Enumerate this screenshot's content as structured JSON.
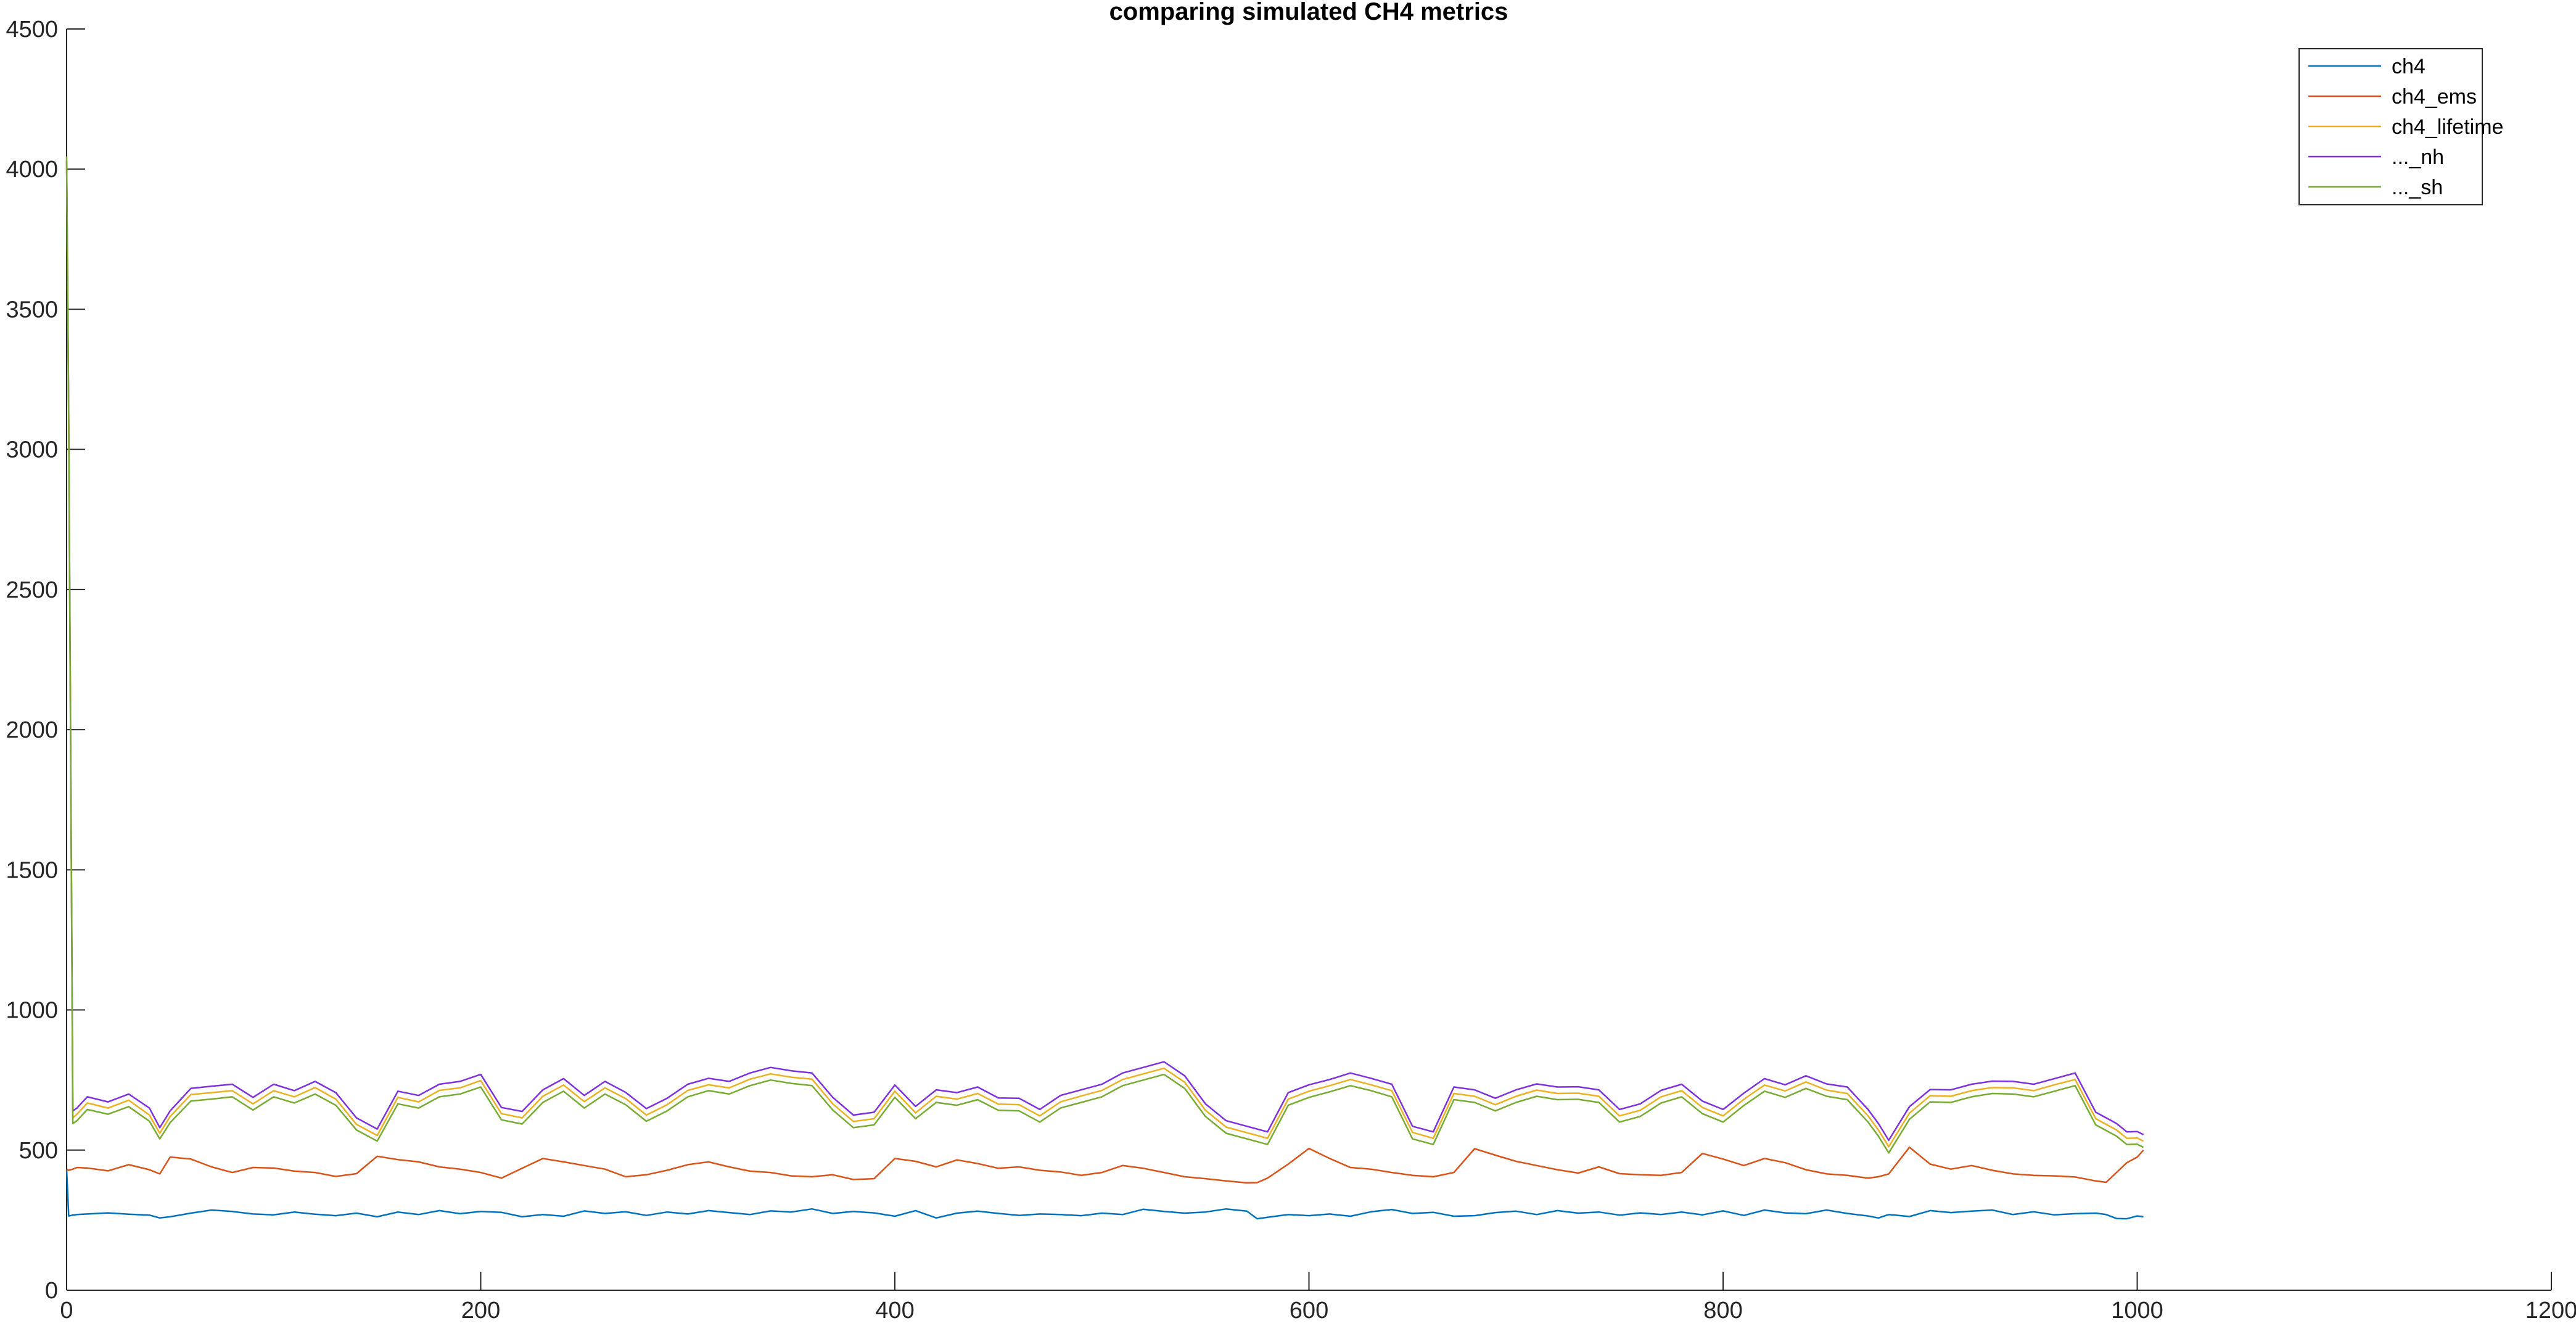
{
  "chart_data": {
    "type": "line",
    "title": "comparing simulated CH4 metrics",
    "xlabel": "",
    "ylabel": "",
    "xlim": [
      0,
      1200
    ],
    "ylim": [
      0,
      4500
    ],
    "xticks": [
      0,
      200,
      400,
      600,
      800,
      1000,
      1200
    ],
    "yticks": [
      0,
      500,
      1000,
      1500,
      2000,
      2500,
      3000,
      3500,
      4000,
      4500
    ],
    "grid": false,
    "legend_position": "top-right",
    "series": [
      {
        "name": "ch4",
        "color": "#0072BD",
        "x": [
          0,
          1,
          3,
          5,
          10,
          20,
          30,
          40,
          45,
          50,
          60,
          70,
          80,
          90,
          100,
          110,
          120,
          130,
          140,
          150,
          160,
          170,
          180,
          190,
          200,
          210,
          220,
          230,
          240,
          250,
          260,
          270,
          280,
          290,
          300,
          310,
          320,
          330,
          340,
          350,
          360,
          370,
          380,
          390,
          400,
          410,
          420,
          430,
          440,
          450,
          460,
          470,
          480,
          490,
          500,
          510,
          520,
          530,
          540,
          550,
          560,
          570,
          575,
          580,
          590,
          600,
          610,
          620,
          630,
          640,
          650,
          660,
          670,
          680,
          690,
          700,
          710,
          720,
          730,
          740,
          750,
          760,
          770,
          780,
          790,
          800,
          810,
          820,
          830,
          840,
          850,
          860,
          870,
          875,
          880,
          890,
          900,
          910,
          920,
          930,
          940,
          950,
          960,
          970,
          980,
          985,
          990,
          995,
          1000,
          1003
        ],
        "y": [
          430,
          265,
          268,
          270,
          272,
          276,
          271,
          268,
          258,
          262,
          275,
          286,
          281,
          272,
          269,
          279,
          271,
          266,
          275,
          262,
          279,
          270,
          284,
          273,
          281,
          278,
          262,
          270,
          264,
          283,
          274,
          280,
          267,
          279,
          272,
          284,
          277,
          270,
          283,
          279,
          290,
          274,
          281,
          276,
          264,
          284,
          258,
          275,
          282,
          274,
          267,
          272,
          270,
          266,
          275,
          270,
          289,
          281,
          275,
          279,
          290,
          282,
          255,
          260,
          270,
          266,
          272,
          264,
          280,
          288,
          274,
          278,
          264,
          266,
          277,
          282,
          270,
          284,
          275,
          279,
          268,
          276,
          270,
          279,
          269,
          283,
          267,
          286,
          276,
          273,
          286,
          274,
          265,
          258,
          270,
          263,
          284,
          277,
          282,
          286,
          270,
          280,
          269,
          273,
          275,
          270,
          256,
          255,
          265,
          262
        ]
      },
      {
        "name": "ch4_ems",
        "color": "#D95319",
        "x": [
          0,
          1,
          3,
          5,
          10,
          20,
          30,
          40,
          45,
          50,
          60,
          70,
          80,
          90,
          100,
          110,
          120,
          130,
          140,
          150,
          160,
          170,
          180,
          190,
          200,
          210,
          220,
          230,
          240,
          250,
          260,
          270,
          280,
          290,
          300,
          310,
          320,
          330,
          340,
          350,
          360,
          370,
          380,
          390,
          400,
          410,
          420,
          430,
          440,
          450,
          460,
          470,
          480,
          490,
          500,
          510,
          520,
          530,
          540,
          550,
          560,
          570,
          575,
          580,
          590,
          600,
          610,
          620,
          630,
          640,
          650,
          660,
          670,
          680,
          690,
          700,
          710,
          720,
          730,
          740,
          750,
          760,
          770,
          780,
          790,
          800,
          810,
          820,
          830,
          840,
          850,
          860,
          870,
          875,
          880,
          890,
          900,
          910,
          920,
          930,
          940,
          950,
          960,
          970,
          980,
          985,
          990,
          995,
          1000,
          1003
        ],
        "y": [
          430,
          428,
          432,
          438,
          436,
          426,
          448,
          430,
          415,
          475,
          468,
          440,
          420,
          438,
          436,
          425,
          420,
          406,
          416,
          478,
          466,
          458,
          440,
          432,
          420,
          400,
          435,
          470,
          458,
          445,
          432,
          405,
          412,
          428,
          448,
          458,
          440,
          425,
          420,
          408,
          405,
          412,
          395,
          398,
          470,
          460,
          440,
          465,
          452,
          435,
          440,
          428,
          422,
          410,
          420,
          445,
          435,
          420,
          405,
          398,
          390,
          383,
          384,
          400,
          450,
          506,
          470,
          438,
          432,
          420,
          410,
          405,
          420,
          505,
          482,
          460,
          445,
          430,
          418,
          440,
          416,
          412,
          410,
          420,
          488,
          468,
          445,
          470,
          455,
          430,
          415,
          410,
          400,
          405,
          415,
          510,
          450,
          432,
          445,
          428,
          415,
          410,
          408,
          404,
          390,
          385,
          420,
          455,
          475,
          500
        ]
      },
      {
        "name": "ch4_lifetime",
        "color": "#EDB120",
        "x": [
          0,
          1,
          3,
          5,
          10,
          20,
          30,
          40,
          45,
          50,
          60,
          70,
          80,
          90,
          100,
          110,
          120,
          130,
          140,
          150,
          160,
          170,
          180,
          190,
          200,
          210,
          220,
          230,
          240,
          250,
          260,
          270,
          280,
          290,
          300,
          310,
          320,
          330,
          340,
          350,
          360,
          370,
          380,
          390,
          400,
          410,
          420,
          430,
          440,
          450,
          460,
          470,
          480,
          490,
          500,
          510,
          520,
          530,
          540,
          550,
          560,
          570,
          575,
          580,
          590,
          600,
          610,
          620,
          630,
          640,
          650,
          660,
          670,
          680,
          690,
          700,
          710,
          720,
          730,
          740,
          750,
          760,
          770,
          780,
          790,
          800,
          810,
          820,
          830,
          840,
          850,
          860,
          870,
          875,
          880,
          890,
          900,
          910,
          920,
          930,
          940,
          950,
          960,
          970,
          980,
          985,
          990,
          995,
          1000,
          1003
        ],
        "y": [
          4025,
          3100,
          615,
          628,
          668,
          650,
          678,
          625,
          560,
          620,
          698,
          705,
          712,
          665,
          712,
          690,
          723,
          682,
          592,
          552,
          688,
          672,
          713,
          722,
          748,
          630,
          615,
          692,
          732,
          673,
          722,
          684,
          625,
          662,
          713,
          733,
          722,
          753,
          772,
          760,
          753,
          665,
          602,
          612,
          710,
          633,
          692,
          682,
          702,
          664,
          662,
          622,
          672,
          693,
          713,
          752,
          772,
          792,
          742,
          642,
          582,
          562,
          552,
          542,
          682,
          710,
          730,
          752,
          733,
          712,
          563,
          542,
          702,
          692,
          662,
          692,
          714,
          702,
          703,
          692,
          622,
          642,
          690,
          712,
          652,
          622,
          681,
          732,
          711,
          743,
          714,
          702,
          622,
          572,
          512,
          632,
          694,
          692,
          712,
          723,
          722,
          712,
          733,
          752,
          612,
          592,
          572,
          542,
          543,
          532
        ]
      },
      {
        "name": "..._nh",
        "color": "#7E2FDE",
        "x": [
          0,
          1,
          3,
          5,
          10,
          20,
          30,
          40,
          45,
          50,
          60,
          70,
          80,
          90,
          100,
          110,
          120,
          130,
          140,
          150,
          160,
          170,
          180,
          190,
          200,
          210,
          220,
          230,
          240,
          250,
          260,
          270,
          280,
          290,
          300,
          310,
          320,
          330,
          340,
          350,
          360,
          370,
          380,
          390,
          400,
          410,
          420,
          430,
          440,
          450,
          460,
          470,
          480,
          490,
          500,
          510,
          520,
          530,
          540,
          550,
          560,
          570,
          575,
          580,
          590,
          600,
          610,
          620,
          630,
          640,
          650,
          660,
          670,
          680,
          690,
          700,
          710,
          720,
          730,
          740,
          750,
          760,
          770,
          780,
          790,
          800,
          810,
          820,
          830,
          840,
          850,
          860,
          870,
          875,
          880,
          890,
          900,
          910,
          920,
          930,
          940,
          950,
          960,
          970,
          980,
          985,
          990,
          995,
          1000,
          1003
        ],
        "y": [
          4030,
          3120,
          640,
          650,
          690,
          672,
          700,
          650,
          580,
          640,
          720,
          728,
          735,
          688,
          735,
          712,
          745,
          705,
          615,
          575,
          710,
          695,
          735,
          745,
          770,
          652,
          638,
          715,
          755,
          695,
          745,
          706,
          648,
          685,
          735,
          756,
          745,
          775,
          795,
          783,
          775,
          688,
          625,
          635,
          732,
          656,
          715,
          705,
          725,
          686,
          685,
          645,
          695,
          715,
          735,
          775,
          795,
          815,
          765,
          665,
          605,
          585,
          575,
          565,
          705,
          733,
          752,
          775,
          756,
          735,
          585,
          565,
          725,
          715,
          685,
          715,
          736,
          725,
          726,
          715,
          645,
          665,
          713,
          735,
          675,
          645,
          703,
          755,
          733,
          765,
          736,
          725,
          645,
          595,
          535,
          655,
          716,
          715,
          735,
          746,
          745,
          735,
          755,
          775,
          635,
          615,
          595,
          565,
          566,
          555
        ]
      },
      {
        "name": "..._sh",
        "color": "#77AC30",
        "x": [
          0,
          1,
          3,
          5,
          10,
          20,
          30,
          40,
          45,
          50,
          60,
          70,
          80,
          90,
          100,
          110,
          120,
          130,
          140,
          150,
          160,
          170,
          180,
          190,
          200,
          210,
          220,
          230,
          240,
          250,
          260,
          270,
          280,
          290,
          300,
          310,
          320,
          330,
          340,
          350,
          360,
          370,
          380,
          390,
          400,
          410,
          420,
          430,
          440,
          450,
          460,
          470,
          480,
          490,
          500,
          510,
          520,
          530,
          540,
          550,
          560,
          570,
          575,
          580,
          590,
          600,
          610,
          620,
          630,
          640,
          650,
          660,
          670,
          680,
          690,
          700,
          710,
          720,
          730,
          740,
          750,
          760,
          770,
          780,
          790,
          800,
          810,
          820,
          830,
          840,
          850,
          860,
          870,
          875,
          880,
          890,
          900,
          910,
          920,
          930,
          940,
          950,
          960,
          970,
          980,
          985,
          990,
          995,
          1000,
          1003
        ],
        "y": [
          4045,
          3080,
          595,
          605,
          645,
          628,
          655,
          603,
          540,
          598,
          675,
          682,
          690,
          643,
          690,
          668,
          700,
          660,
          572,
          532,
          665,
          650,
          690,
          700,
          725,
          608,
          593,
          670,
          710,
          650,
          700,
          662,
          603,
          640,
          690,
          712,
          700,
          730,
          750,
          738,
          730,
          643,
          580,
          590,
          688,
          612,
          670,
          660,
          680,
          642,
          640,
          600,
          650,
          670,
          690,
          730,
          750,
          770,
          720,
          620,
          560,
          540,
          530,
          520,
          660,
          688,
          708,
          730,
          712,
          690,
          540,
          520,
          680,
          670,
          640,
          670,
          692,
          680,
          681,
          670,
          600,
          620,
          668,
          690,
          630,
          600,
          659,
          710,
          688,
          720,
          692,
          680,
          600,
          550,
          490,
          610,
          672,
          670,
          690,
          702,
          700,
          690,
          710,
          730,
          590,
          570,
          550,
          520,
          521,
          510
        ]
      }
    ]
  }
}
